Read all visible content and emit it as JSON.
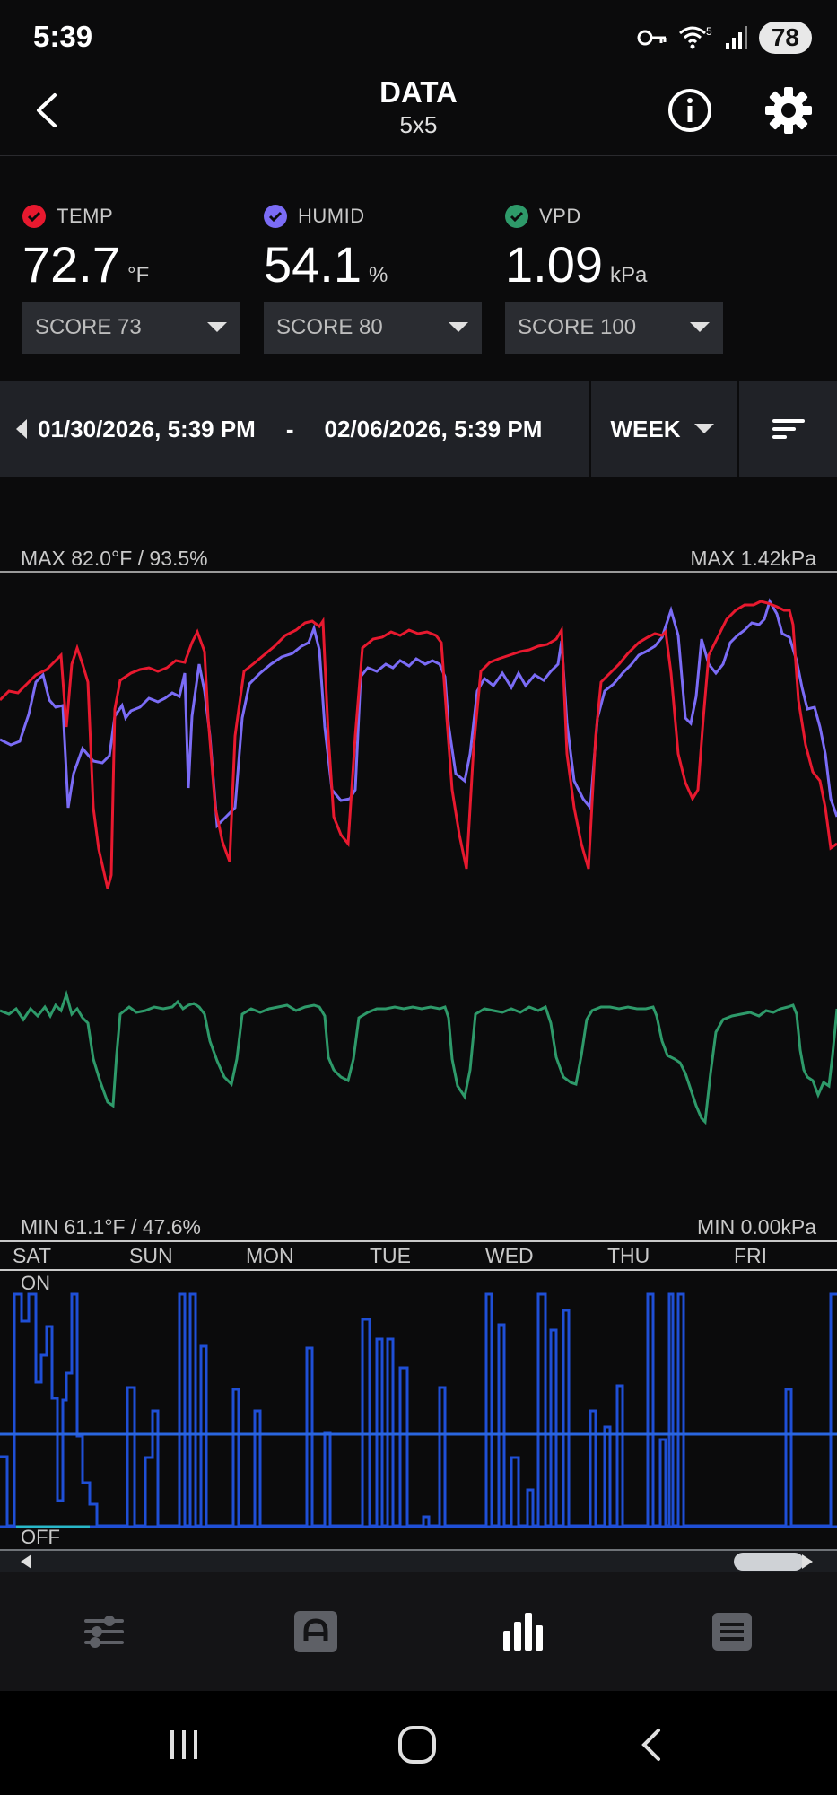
{
  "status_bar": {
    "time": "5:39",
    "battery": "78",
    "wifi_badge": "5"
  },
  "header": {
    "title": "DATA",
    "subtitle": "5x5"
  },
  "sensors": [
    {
      "label": "TEMP",
      "value": "72.7",
      "unit": "°F",
      "score": "SCORE 73",
      "color": "#e8192f"
    },
    {
      "label": "HUMID",
      "value": "54.1",
      "unit": "%",
      "score": "SCORE 80",
      "color": "#7b6cf6"
    },
    {
      "label": "VPD",
      "value": "1.09",
      "unit": "kPa",
      "score": "SCORE 100",
      "color": "#2e9a6a"
    }
  ],
  "date_range": {
    "start": "01/30/2026, 5:39 PM",
    "separator": "-",
    "end": "02/06/2026, 5:39 PM",
    "period": "WEEK"
  },
  "chart": {
    "max_left": "MAX 82.0°F / 93.5%",
    "max_right": "MAX 1.42kPa",
    "min_left": "MIN 61.1°F / 47.6%",
    "min_right": "MIN 0.00kPa",
    "days": [
      "SAT",
      "SUN",
      "MON",
      "TUE",
      "WED",
      "THU",
      "FRI"
    ],
    "on_label": "ON",
    "off_label": "OFF"
  },
  "colors": {
    "temp": "#e8192f",
    "humid": "#7b6cf6",
    "vpd": "#2e9a6a",
    "device": "#1f4fd6",
    "background": "#0b0b0c"
  },
  "bottom_nav": [
    {
      "icon": "sliders-icon",
      "active": false
    },
    {
      "icon": "auto-mode-icon",
      "active": false
    },
    {
      "icon": "bar-chart-icon",
      "active": true
    },
    {
      "icon": "log-icon",
      "active": false
    }
  ]
}
